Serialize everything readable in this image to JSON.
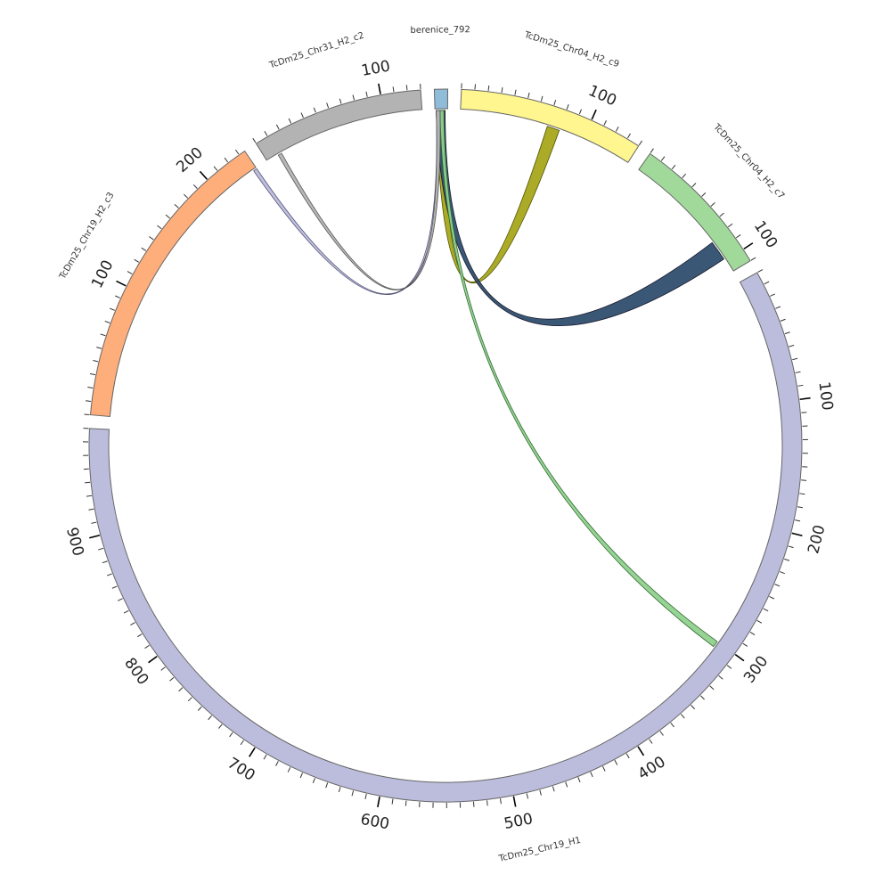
{
  "diagram": {
    "type": "circos",
    "segments": [
      {
        "name": "berenice_792",
        "length": 10,
        "color": "#8fbcd9",
        "major_labels": []
      },
      {
        "name": "TcDm25_Chr04_H2_c9",
        "length": 140,
        "color": "#fff68f",
        "major_labels": [
          "100"
        ]
      },
      {
        "name": "TcDm25_Chr04_H2_c7",
        "length": 110,
        "color": "#a1d99b",
        "major_labels": [
          "100"
        ]
      },
      {
        "name": "TcDm25_Chr19_H1",
        "length": 980,
        "color": "#bcbddc",
        "major_labels": [
          "100",
          "200",
          "300",
          "400",
          "500",
          "600",
          "700",
          "800",
          "900"
        ]
      },
      {
        "name": "TcDm25_Chr19_H2_c3",
        "length": 235,
        "color": "#fdae7b",
        "major_labels": [
          "100",
          "200"
        ]
      },
      {
        "name": "TcDm25_Chr31_H2_c2",
        "length": 130,
        "color": "#b3b3b3",
        "major_labels": [
          "100"
        ]
      }
    ],
    "links": [
      {
        "from": "berenice_792",
        "from_range": [
          1,
          8
        ],
        "to": "TcDm25_Chr04_H2_c9",
        "to_range": [
          70,
          80
        ],
        "color": "#a6a61c",
        "stroke": "#4d4d00"
      },
      {
        "from": "berenice_792",
        "from_range": [
          1,
          8
        ],
        "to": "TcDm25_Chr04_H2_c7",
        "to_range": [
          82,
          98
        ],
        "color": "#2f4f6f",
        "stroke": "#1a1a2e"
      },
      {
        "from": "berenice_792",
        "from_range": [
          4,
          7
        ],
        "to": "TcDm25_Chr19_H1",
        "to_range": [
          300,
          305
        ],
        "color": "#90d18f",
        "stroke": "#2e6b2e"
      },
      {
        "from": "berenice_792",
        "from_range": [
          1,
          4
        ],
        "to": "TcDm25_Chr19_H2_c3",
        "to_range": [
          232,
          235
        ],
        "color": "#bcbddc",
        "stroke": "#555577"
      },
      {
        "from": "berenice_792",
        "from_range": [
          1,
          4
        ],
        "to": "TcDm25_Chr31_H2_c2",
        "to_range": [
          10,
          13
        ],
        "color": "#b3b3b3",
        "stroke": "#555555"
      }
    ]
  }
}
